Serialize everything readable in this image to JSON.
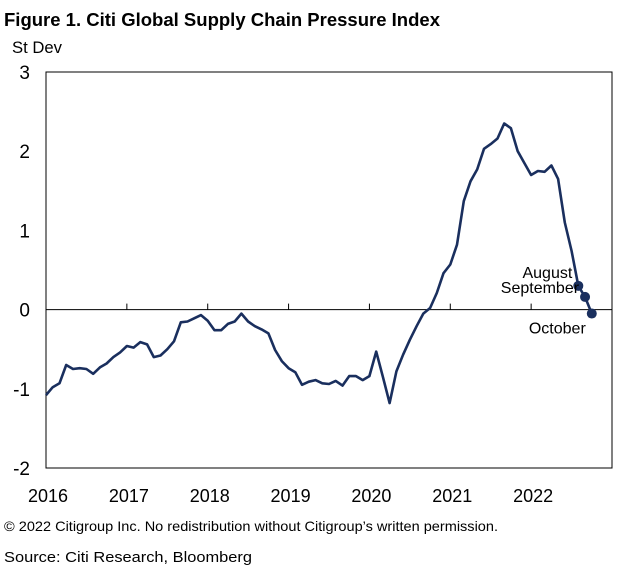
{
  "chart_data": {
    "type": "line",
    "title": "Figure 1. Citi Global Supply Chain Pressure Index",
    "ylabel": "St Dev",
    "xlabel": "",
    "ylim": [
      -2,
      3
    ],
    "xlim": [
      2016,
      2023
    ],
    "yticks": [
      "3",
      "2",
      "1",
      "0",
      "-1",
      "-2"
    ],
    "ytick_values": [
      3,
      2,
      1,
      0,
      -1,
      -2
    ],
    "xticks": [
      "2016",
      "2017",
      "2018",
      "2019",
      "2020",
      "2021",
      "2022"
    ],
    "grid": false,
    "line_color": "#1a2f5e",
    "start": "2016-01",
    "frequency": "monthly",
    "series": [
      {
        "name": "Citi Global Supply Chain Pressure Index",
        "values": [
          -1.08,
          -0.98,
          -0.93,
          -0.7,
          -0.75,
          -0.74,
          -0.75,
          -0.81,
          -0.73,
          -0.68,
          -0.6,
          -0.54,
          -0.46,
          -0.48,
          -0.41,
          -0.44,
          -0.6,
          -0.58,
          -0.5,
          -0.4,
          -0.16,
          -0.15,
          -0.11,
          -0.07,
          -0.14,
          -0.26,
          -0.26,
          -0.18,
          -0.15,
          -0.05,
          -0.15,
          -0.21,
          -0.25,
          -0.3,
          -0.51,
          -0.65,
          -0.74,
          -0.79,
          -0.95,
          -0.91,
          -0.89,
          -0.93,
          -0.94,
          -0.9,
          -0.96,
          -0.84,
          -0.84,
          -0.89,
          -0.84,
          -0.53,
          -0.85,
          -1.18,
          -0.78,
          -0.57,
          -0.38,
          -0.21,
          -0.05,
          0.02,
          0.21,
          0.46,
          0.57,
          0.82,
          1.37,
          1.62,
          1.77,
          2.03,
          2.09,
          2.16,
          2.35,
          2.29,
          2.0,
          1.85,
          1.7,
          1.75,
          1.74,
          1.82,
          1.65,
          1.1,
          0.74,
          0.3,
          0.16,
          -0.05
        ]
      }
    ],
    "annotations": [
      {
        "label": "August",
        "index": 79
      },
      {
        "label": "September",
        "index": 80
      },
      {
        "label": "October",
        "index": 81
      }
    ]
  },
  "footer": {
    "copyright": "© 2022 Citigroup Inc. No redistribution without Citigroup’s written permission.",
    "source": "Source: Citi Research, Bloomberg"
  }
}
